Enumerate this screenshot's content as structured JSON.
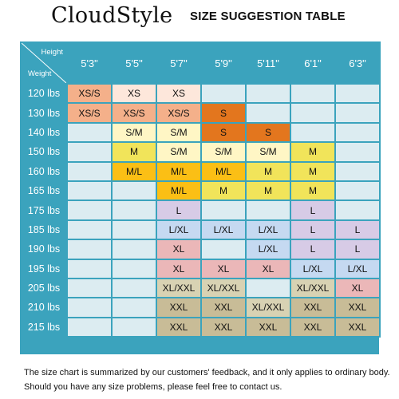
{
  "header": {
    "brand": "CloudStyle",
    "subtitle": "SIZE SUGGESTION TABLE"
  },
  "table": {
    "corner_height_label": "Height",
    "corner_weight_label": "Weight",
    "heights": [
      "5'3\"",
      "5'5\"",
      "5'7\"",
      "5'9\"",
      "5'11\"",
      "6'1\"",
      "6'3\""
    ],
    "colors": {
      "empty": "#dcecf1",
      "XS/S": "#f4b08a",
      "XS": "#fde7db",
      "S": "#e3761e",
      "S/M": "#fff6c5",
      "M": "#f1e45a",
      "M/L": "#fbbf15",
      "L": "#d7cbe6",
      "L/XL": "#c5d9f1",
      "XL": "#ebb7b8",
      "XL/XXL": "#d8d2b3",
      "XXL": "#c8bc97"
    },
    "rows": [
      {
        "weight": "120 lbs",
        "cells": [
          "XS/S",
          "XS",
          "XS",
          "",
          "",
          "",
          ""
        ]
      },
      {
        "weight": "130 lbs",
        "cells": [
          "XS/S",
          "XS/S",
          "XS/S",
          "S",
          "",
          "",
          ""
        ]
      },
      {
        "weight": "140 lbs",
        "cells": [
          "",
          "S/M",
          "S/M",
          "S",
          "S",
          "",
          ""
        ]
      },
      {
        "weight": "150 lbs",
        "cells": [
          "",
          "M",
          "S/M",
          "S/M",
          "S/M",
          "M",
          ""
        ]
      },
      {
        "weight": "160 lbs",
        "cells": [
          "",
          "M/L",
          "M/L",
          "M/L",
          "M",
          "M",
          ""
        ]
      },
      {
        "weight": "165 lbs",
        "cells": [
          "",
          "",
          "M/L",
          "M",
          "M",
          "M",
          ""
        ]
      },
      {
        "weight": "175 lbs",
        "cells": [
          "",
          "",
          "L",
          "",
          "",
          "L",
          ""
        ]
      },
      {
        "weight": "185 lbs",
        "cells": [
          "",
          "",
          "L/XL",
          "L/XL",
          "L/XL",
          "L",
          "L"
        ]
      },
      {
        "weight": "190 lbs",
        "cells": [
          "",
          "",
          "XL",
          "",
          "L/XL",
          "L",
          "L"
        ]
      },
      {
        "weight": "195 lbs",
        "cells": [
          "",
          "",
          "XL",
          "XL",
          "XL",
          "L/XL",
          "L/XL"
        ]
      },
      {
        "weight": "205 lbs",
        "cells": [
          "",
          "",
          "XL/XXL",
          "XL/XXL",
          "",
          "XL/XXL",
          "XL"
        ]
      },
      {
        "weight": "210 lbs",
        "cells": [
          "",
          "",
          "XXL",
          "XXL",
          "XL/XXL",
          "XXL",
          "XXL"
        ]
      },
      {
        "weight": "215 lbs",
        "cells": [
          "",
          "",
          "XXL",
          "XXL",
          "XXL",
          "XXL",
          "XXL"
        ]
      }
    ]
  },
  "notes": {
    "line1": "The size chart is summarized by our customers' feedback, and it only applies to ordinary body.",
    "line2": "Should you have any size problems, please feel free to contact us."
  }
}
